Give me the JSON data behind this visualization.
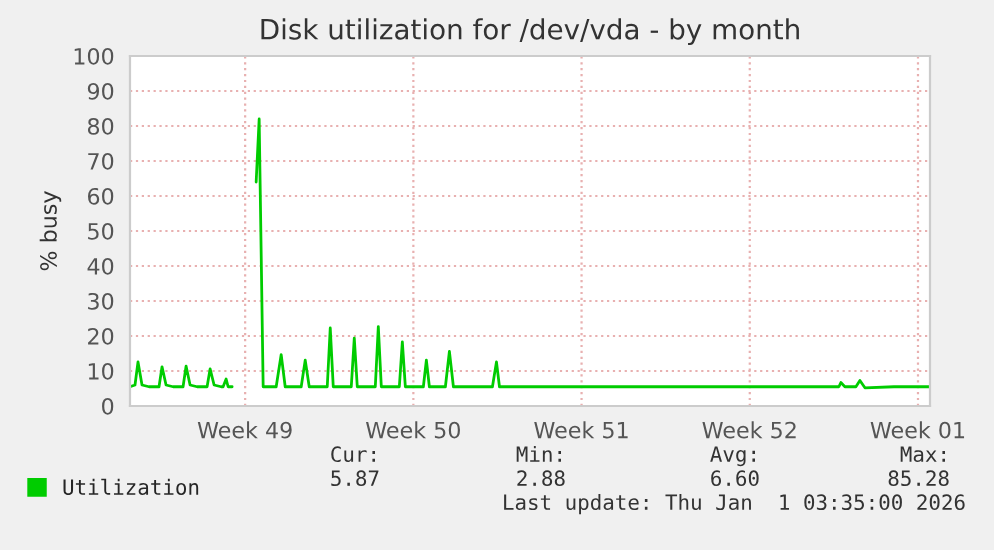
{
  "chart_data": {
    "type": "line",
    "title": "Disk utilization for /dev/vda - by month",
    "ylabel": "% busy",
    "x": [
      "2025-11-29T17:00",
      "2025-11-29T22:00",
      "2025-11-30T01:00",
      "2025-11-30T05:00",
      "2025-11-30T12:00",
      "2025-11-30T22:00",
      "2025-12-01T01:00",
      "2025-12-01T05:00",
      "2025-12-01T12:00",
      "2025-12-01T22:00",
      "2025-12-02T01:00",
      "2025-12-02T05:00",
      "2025-12-02T12:00",
      "2025-12-02T22:00",
      "2025-12-03T01:00",
      "2025-12-03T05:00",
      "2025-12-03T12:00",
      "2025-12-03T14:00",
      "2025-12-03T17:00",
      "2025-12-03T19:00",
      "2025-12-03T23:00",
      "2025-12-04T05:00",
      "2025-12-04T23:00",
      "2025-12-05T02:00",
      "2025-12-05T06:00",
      "2025-12-05T10:00",
      "2025-12-05T19:00",
      "2025-12-06T00:00",
      "2025-12-06T04:00",
      "2025-12-06T12:00",
      "2025-12-06T20:00",
      "2025-12-07T00:00",
      "2025-12-07T04:00",
      "2025-12-07T12:00",
      "2025-12-07T22:00",
      "2025-12-08T01:00",
      "2025-12-08T04:00",
      "2025-12-08T12:00",
      "2025-12-08T22:00",
      "2025-12-09T01:00",
      "2025-12-09T04:00",
      "2025-12-09T12:00",
      "2025-12-09T22:00",
      "2025-12-10T01:00",
      "2025-12-10T04:00",
      "2025-12-10T12:00",
      "2025-12-10T22:00",
      "2025-12-11T01:00",
      "2025-12-11T04:00",
      "2025-12-11T12:00",
      "2025-12-11T22:00",
      "2025-12-12T01:00",
      "2025-12-12T04:00",
      "2025-12-12T12:00",
      "2025-12-12T20:00",
      "2025-12-13T00:00",
      "2025-12-13T04:00",
      "2025-12-14T00:00",
      "2025-12-14T19:00",
      "2025-12-14T23:00",
      "2025-12-15T02:00",
      "2025-12-16T12:00",
      "2025-12-18T12:00",
      "2025-12-20T12:00",
      "2025-12-22T12:00",
      "2025-12-24T12:00",
      "2025-12-26T12:00",
      "2025-12-28T12:00",
      "2025-12-29T05:00",
      "2025-12-29T07:00",
      "2025-12-29T11:00",
      "2025-12-29T22:00",
      "2025-12-30T02:00",
      "2025-12-30T07:00",
      "2025-12-31T12:00",
      "2026-01-02T00:00"
    ],
    "series": [
      {
        "name": "Utilization",
        "color": "#00cc00",
        "values": [
          5.5,
          6,
          12.6,
          6,
          5.5,
          5.5,
          11.2,
          6,
          5.5,
          5.5,
          11.4,
          6,
          5.5,
          5.5,
          10.6,
          6,
          5.5,
          5.5,
          7.7,
          5.5,
          5.5,
          null,
          64,
          82,
          5.5,
          5.5,
          5.5,
          14.7,
          5.5,
          5.5,
          5.5,
          13.1,
          5.5,
          5.5,
          5.5,
          22.3,
          5.5,
          5.5,
          5.5,
          19.4,
          5.5,
          5.5,
          5.5,
          22.7,
          5.5,
          5.5,
          5.5,
          18.3,
          5.5,
          5.5,
          5.5,
          13.1,
          5.5,
          5.5,
          5.5,
          15.6,
          5.5,
          5.5,
          5.5,
          12.6,
          5.5,
          5.5,
          5.5,
          5.5,
          5.5,
          5.5,
          5.5,
          5.5,
          5.5,
          6.7,
          5.5,
          5.5,
          7.3,
          5.2,
          5.5,
          5.5
        ]
      }
    ],
    "xlim": [
      "2025-11-29T17:00",
      "2026-01-02T00:00"
    ],
    "xticks": [
      {
        "value": "2025-12-04T12:00",
        "label": "Week 49"
      },
      {
        "value": "2025-12-11T12:00",
        "label": "Week 50"
      },
      {
        "value": "2025-12-18T12:00",
        "label": "Week 51"
      },
      {
        "value": "2025-12-25T12:00",
        "label": "Week 52"
      },
      {
        "value": "2026-01-01T12:00",
        "label": "Week 01"
      }
    ],
    "ylim": [
      0,
      100
    ],
    "yticks": [
      0,
      10,
      20,
      30,
      40,
      50,
      60,
      70,
      80,
      90,
      100
    ],
    "grid": true,
    "legend": "bottom",
    "marker": "none",
    "line_style": "solid",
    "annotations": [
      "Cur:",
      "Min:",
      "Avg:",
      "Max:",
      "5.87",
      "2.88",
      "6.60",
      "85.28",
      "Last update: Thu Jan  1 03:35:00 2026"
    ]
  }
}
